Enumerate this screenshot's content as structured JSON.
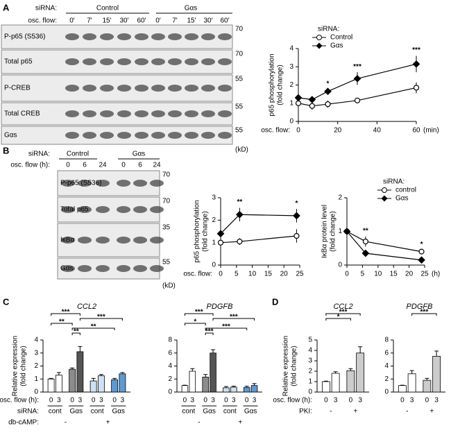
{
  "panel_labels": [
    "A",
    "B",
    "C",
    "D"
  ],
  "blots": [
    {
      "sirna_label": "siRNA:",
      "groups": [
        "Control",
        "Gαs"
      ],
      "flow_label": "osc. flow:",
      "lanes": [
        "0'",
        "7'",
        "15'",
        "30'",
        "60'",
        "0'",
        "7'",
        "15'",
        "30'",
        "60'"
      ],
      "rows": [
        "P-p65 (S536)",
        "Total p65",
        "P-CREB",
        "Total CREB",
        "Gαs"
      ],
      "markers": [
        "70",
        "70",
        "55",
        "55",
        "55"
      ],
      "unit": "(kD)"
    },
    {
      "sirna_label": "siRNA:",
      "groups": [
        "Control",
        "Gαs"
      ],
      "flow_label": "osc. flow (h):",
      "lanes": [
        "0",
        "6",
        "24",
        "0",
        "6",
        "24"
      ],
      "rows": [
        "P-p65 (S536)",
        "Total p65",
        "IκBα",
        "Gαs"
      ],
      "markers": [
        "70",
        "70",
        "35",
        "55"
      ],
      "unit": "(kD)"
    }
  ],
  "chart_data": [
    {
      "type": "line",
      "x": [
        0,
        7,
        15,
        30,
        60
      ],
      "xlim": [
        0,
        60
      ],
      "xticks": [
        0,
        20,
        40,
        60
      ],
      "ylim": [
        0,
        4
      ],
      "yticks": [
        0,
        1,
        2,
        3,
        4
      ],
      "y_label": [
        "p65 phosphorylation",
        "(fold change)"
      ],
      "x_label": "osc. flow:",
      "x_unit": "(min)",
      "legend_title": "siRNA:",
      "series": [
        {
          "name": "Control",
          "color": "#000000",
          "marker": "open",
          "values": [
            1.0,
            0.85,
            0.95,
            1.15,
            1.85
          ],
          "errors": [
            0.15,
            0.2,
            0.2,
            0.15,
            0.3
          ]
        },
        {
          "name": "Gαs",
          "color": "#000000",
          "marker": "filled",
          "values": [
            1.3,
            1.2,
            1.65,
            2.35,
            3.15
          ],
          "errors": [
            0.2,
            0.15,
            0.1,
            0.35,
            0.45
          ]
        }
      ],
      "annotations": [
        {
          "x": 15,
          "label": "*"
        },
        {
          "x": 30,
          "label": "***"
        },
        {
          "x": 60,
          "label": "***"
        }
      ]
    },
    {
      "type": "line",
      "x": [
        0,
        6,
        24
      ],
      "xlim": [
        0,
        25
      ],
      "xticks": [
        0,
        5,
        10,
        15,
        20,
        25
      ],
      "ylim": [
        0,
        3
      ],
      "yticks": [
        0,
        1,
        2,
        3
      ],
      "y_label": [
        "p65 phosphorylation",
        "(fold change)"
      ],
      "x_label": "osc. flow:",
      "series": [
        {
          "name": "control",
          "color": "#000000",
          "marker": "open",
          "values": [
            1.0,
            1.05,
            1.3
          ],
          "errors": [
            0.15,
            0.15,
            0.3
          ]
        },
        {
          "name": "Gαs",
          "color": "#000000",
          "marker": "filled",
          "values": [
            1.4,
            2.25,
            2.2
          ],
          "errors": [
            0.1,
            0.3,
            0.3
          ]
        }
      ],
      "annotations": [
        {
          "x": 6,
          "label": "**"
        },
        {
          "x": 24,
          "label": "*"
        }
      ]
    },
    {
      "type": "line",
      "x": [
        0,
        6,
        24
      ],
      "xlim": [
        0,
        25
      ],
      "xticks": [
        0,
        5,
        10,
        15,
        20,
        25
      ],
      "ylim": [
        0,
        2
      ],
      "yticks": [
        0,
        1,
        2
      ],
      "y_label": [
        "IκBα protein level",
        "(fold change)"
      ],
      "x_unit": "(h)",
      "legend_title": "siRNA:",
      "series": [
        {
          "name": "control",
          "color": "#000000",
          "marker": "open",
          "values": [
            1.0,
            0.7,
            0.4
          ],
          "errors": [
            0.05,
            0.15,
            0.05
          ]
        },
        {
          "name": "Gαs",
          "color": "#000000",
          "marker": "filled",
          "values": [
            1.0,
            0.35,
            0.15
          ],
          "errors": [
            0.05,
            0.1,
            0.03
          ]
        }
      ],
      "annotations": [
        {
          "x": 6,
          "label": "**"
        },
        {
          "x": 24,
          "label": "*"
        }
      ]
    },
    {
      "type": "bar",
      "title": "CCL2",
      "y_label": [
        "Relative expression",
        "(fold change)"
      ],
      "categories": [
        "0",
        "3",
        "0",
        "3",
        "0",
        "3",
        "0",
        "3"
      ],
      "values": [
        1.0,
        1.3,
        1.75,
        3.1,
        0.85,
        1.25,
        0.95,
        1.4
      ],
      "errors": [
        0.05,
        0.2,
        0.1,
        0.4,
        0.2,
        0.1,
        0.1,
        0.1
      ],
      "colors": [
        "#ffffff",
        "#ffffff",
        "#8c8c8c",
        "#555555",
        "#cfe2f3",
        "#cfe2f3",
        "#5b9bd5",
        "#5b9bd5"
      ],
      "ylim": [
        0,
        4
      ],
      "yticks": [
        0,
        1,
        2,
        3,
        4
      ],
      "row_labels": [
        "osc. flow (h):",
        "siRNA:",
        "db-cAMP:"
      ],
      "group_rows": [
        [
          "cont",
          "Gαs",
          "cont",
          "Gαs"
        ],
        [
          "-",
          "+"
        ]
      ],
      "significance": [
        {
          "from": 0,
          "to": 3,
          "label": "***"
        },
        {
          "from": 3,
          "to": 7,
          "label": "***"
        },
        {
          "from": 0,
          "to": 2,
          "label": "**"
        },
        {
          "from": 2,
          "to": 6,
          "label": "**"
        },
        {
          "from": 2,
          "to": 3,
          "label": "**"
        }
      ]
    },
    {
      "type": "bar",
      "title": "PDGFB",
      "categories": [
        "0",
        "3",
        "0",
        "3",
        "0",
        "3",
        "0",
        "3"
      ],
      "values": [
        1.0,
        3.2,
        2.3,
        6.0,
        0.65,
        0.75,
        0.7,
        1.0
      ],
      "errors": [
        0.05,
        0.4,
        0.4,
        0.5,
        0.2,
        0.15,
        0.2,
        0.3
      ],
      "colors": [
        "#ffffff",
        "#ffffff",
        "#8c8c8c",
        "#555555",
        "#cfe2f3",
        "#cfe2f3",
        "#5b9bd5",
        "#5b9bd5"
      ],
      "ylim": [
        0,
        8
      ],
      "yticks": [
        0,
        2,
        4,
        6,
        8
      ],
      "group_rows": [
        [
          "cont",
          "Gαs",
          "cont",
          "Gαs"
        ],
        [
          "-",
          "+"
        ]
      ],
      "significance": [
        {
          "from": 0,
          "to": 3,
          "label": "***"
        },
        {
          "from": 3,
          "to": 7,
          "label": "***"
        },
        {
          "from": 0,
          "to": 2,
          "label": "*"
        },
        {
          "from": 2,
          "to": 6,
          "label": "***"
        },
        {
          "from": 2,
          "to": 3,
          "label": "***"
        }
      ]
    },
    {
      "type": "bar",
      "title": "CCL2",
      "y_label": [
        "Relative expression",
        "(fold change)"
      ],
      "categories": [
        "0",
        "3",
        "0",
        "3"
      ],
      "values": [
        1.0,
        1.8,
        2.05,
        3.75
      ],
      "errors": [
        0.05,
        0.15,
        0.2,
        0.6
      ],
      "colors": [
        "#ffffff",
        "#ffffff",
        "#cccccc",
        "#cccccc"
      ],
      "ylim": [
        0,
        5
      ],
      "yticks": [
        0,
        1,
        2,
        3,
        4,
        5
      ],
      "row_labels": [
        "osc. flow (h):",
        "PKI:"
      ],
      "group_rows": [
        [
          "-",
          "+"
        ]
      ],
      "significance": [
        {
          "from": 0,
          "to": 3,
          "label": "***"
        },
        {
          "from": 0,
          "to": 2,
          "label": "*"
        }
      ]
    },
    {
      "type": "bar",
      "title": "PDGFB",
      "categories": [
        "0",
        "3",
        "0",
        "3"
      ],
      "values": [
        1.0,
        2.8,
        1.8,
        5.5
      ],
      "errors": [
        0.05,
        0.5,
        0.3,
        0.8
      ],
      "colors": [
        "#ffffff",
        "#ffffff",
        "#cccccc",
        "#cccccc"
      ],
      "ylim": [
        0,
        8
      ],
      "yticks": [
        0,
        2,
        4,
        6,
        8
      ],
      "group_rows": [
        [
          "-",
          "+"
        ]
      ],
      "significance": [
        {
          "from": 1,
          "to": 3,
          "label": "***"
        }
      ]
    }
  ]
}
